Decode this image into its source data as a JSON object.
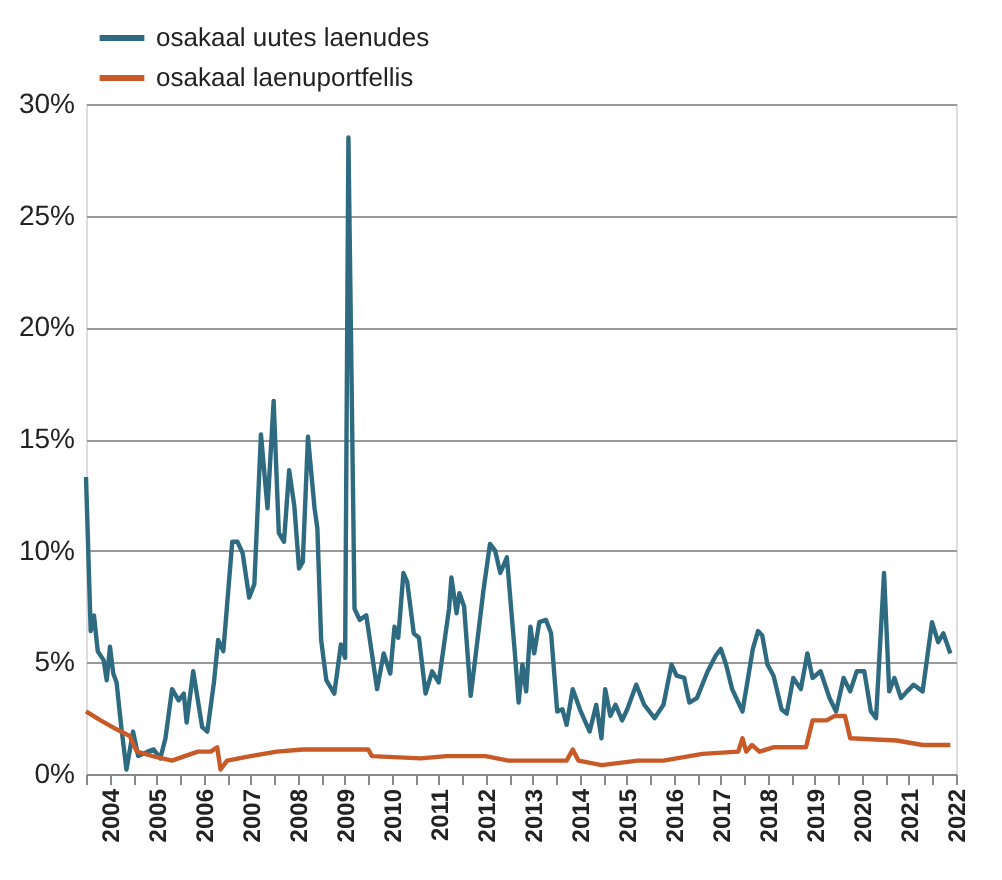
{
  "chart_data": {
    "type": "line",
    "xlim": [
      2004,
      2022.5
    ],
    "xticks": [
      {
        "value": 2004,
        "label": null
      },
      {
        "value": 2004.5,
        "label": "2004"
      },
      {
        "value": 2005,
        "label": null
      },
      {
        "value": 2005.5,
        "label": "2005"
      },
      {
        "value": 2006,
        "label": null
      },
      {
        "value": 2006.5,
        "label": "2006"
      },
      {
        "value": 2007,
        "label": null
      },
      {
        "value": 2007.5,
        "label": "2007"
      },
      {
        "value": 2008,
        "label": null
      },
      {
        "value": 2008.5,
        "label": "2008"
      },
      {
        "value": 2009,
        "label": null
      },
      {
        "value": 2009.5,
        "label": "2009"
      },
      {
        "value": 2010,
        "label": null
      },
      {
        "value": 2010.5,
        "label": "2010"
      },
      {
        "value": 2011,
        "label": null
      },
      {
        "value": 2011.5,
        "label": "2011"
      },
      {
        "value": 2012,
        "label": null
      },
      {
        "value": 2012.5,
        "label": "2012"
      },
      {
        "value": 2013,
        "label": null
      },
      {
        "value": 2013.5,
        "label": "2013"
      },
      {
        "value": 2014,
        "label": null
      },
      {
        "value": 2014.5,
        "label": "2014"
      },
      {
        "value": 2015,
        "label": null
      },
      {
        "value": 2015.5,
        "label": "2015"
      },
      {
        "value": 2016,
        "label": null
      },
      {
        "value": 2016.5,
        "label": "2016"
      },
      {
        "value": 2017,
        "label": null
      },
      {
        "value": 2017.5,
        "label": "2017"
      },
      {
        "value": 2018,
        "label": null
      },
      {
        "value": 2018.5,
        "label": "2018"
      },
      {
        "value": 2019,
        "label": null
      },
      {
        "value": 2019.5,
        "label": "2019"
      },
      {
        "value": 2020,
        "label": null
      },
      {
        "value": 2020.5,
        "label": "2020"
      },
      {
        "value": 2021,
        "label": null
      },
      {
        "value": 2021.5,
        "label": "2021"
      },
      {
        "value": 2022,
        "label": null
      },
      {
        "value": 2022.5,
        "label": "2022"
      }
    ],
    "ylim": [
      0,
      30
    ],
    "yticks": [
      {
        "value": 0,
        "label": "0%"
      },
      {
        "value": 5,
        "label": "5%"
      },
      {
        "value": 10,
        "label": "10%"
      },
      {
        "value": 15,
        "label": "15%"
      },
      {
        "value": 20,
        "label": "20%"
      },
      {
        "value": 25,
        "label": "25%"
      },
      {
        "value": 30,
        "label": "30%"
      }
    ],
    "grid": "y",
    "legend": "top left",
    "line_style": "solid",
    "marker": "none",
    "series": [
      {
        "name": "osakaal uutes laenudes",
        "color": "#2e6b80",
        "x": [
          2004.0,
          2004.1,
          2004.17,
          2004.25,
          2004.375,
          2004.44,
          2004.51,
          2004.58,
          2004.65,
          2004.75,
          2004.86,
          2005.0,
          2005.11,
          2005.31,
          2005.44,
          2005.58,
          2005.69,
          2005.83,
          2005.97,
          2006.08,
          2006.14,
          2006.28,
          2006.47,
          2006.58,
          2006.72,
          2006.81,
          2006.92,
          2007.11,
          2007.22,
          2007.33,
          2007.47,
          2007.58,
          2007.72,
          2007.86,
          2007.99,
          2008.1,
          2008.21,
          2008.32,
          2008.43,
          2008.53,
          2008.61,
          2008.72,
          2008.86,
          2008.92,
          2009.0,
          2009.11,
          2009.28,
          2009.42,
          2009.51,
          2009.58,
          2009.71,
          2009.82,
          2009.96,
          2010.19,
          2010.33,
          2010.47,
          2010.56,
          2010.64,
          2010.75,
          2010.83,
          2010.97,
          2011.08,
          2011.22,
          2011.36,
          2011.5,
          2011.72,
          2011.77,
          2011.88,
          2011.94,
          2012.04,
          2012.18,
          2012.29,
          2012.45,
          2012.59,
          2012.7,
          2012.81,
          2012.95,
          2013.12,
          2013.2,
          2013.28,
          2013.36,
          2013.45,
          2013.53,
          2013.64,
          2013.78,
          2013.89,
          2014.02,
          2014.13,
          2014.22,
          2014.35,
          2014.52,
          2014.71,
          2014.85,
          2014.96,
          2015.04,
          2015.15,
          2015.26,
          2015.4,
          2015.51,
          2015.7,
          2015.87,
          2016.09,
          2016.28,
          2016.45,
          2016.56,
          2016.72,
          2016.83,
          2016.99,
          2017.22,
          2017.39,
          2017.5,
          2017.61,
          2017.74,
          2017.96,
          2018.18,
          2018.29,
          2018.38,
          2018.49,
          2018.62,
          2018.79,
          2018.9,
          2019.04,
          2019.2,
          2019.34,
          2019.45,
          2019.62,
          2019.81,
          2019.95,
          2020.11,
          2020.25,
          2020.39,
          2020.55,
          2020.69,
          2020.8,
          2020.97,
          2021.08,
          2021.19,
          2021.33,
          2021.46,
          2021.6,
          2021.79,
          2021.99,
          2022.12,
          2022.23,
          2022.38
        ],
        "values": [
          13.3,
          6.4,
          7.1,
          5.5,
          5.1,
          4.2,
          5.7,
          4.5,
          4.1,
          2.1,
          0.2,
          1.9,
          0.8,
          1.0,
          1.1,
          0.7,
          1.6,
          3.8,
          3.3,
          3.6,
          2.3,
          4.6,
          2.1,
          1.9,
          4.1,
          6.0,
          5.5,
          10.4,
          10.4,
          9.9,
          7.9,
          8.5,
          15.2,
          11.9,
          16.7,
          10.8,
          10.4,
          13.6,
          12.0,
          9.2,
          9.5,
          15.1,
          11.9,
          11.0,
          6.0,
          4.2,
          3.6,
          5.8,
          5.2,
          28.5,
          7.4,
          6.9,
          7.1,
          3.8,
          5.4,
          4.5,
          6.6,
          6.1,
          9.0,
          8.6,
          6.3,
          6.1,
          3.6,
          4.6,
          4.1,
          7.4,
          8.8,
          7.2,
          8.1,
          7.5,
          3.5,
          5.4,
          8.2,
          10.3,
          10.0,
          9.0,
          9.7,
          5.4,
          3.2,
          4.9,
          3.7,
          6.6,
          5.4,
          6.8,
          6.9,
          6.3,
          2.8,
          2.9,
          2.2,
          3.8,
          2.8,
          1.9,
          3.1,
          1.6,
          3.8,
          2.6,
          3.1,
          2.4,
          2.9,
          4.0,
          3.1,
          2.5,
          3.1,
          4.9,
          4.4,
          4.3,
          3.2,
          3.4,
          4.6,
          5.3,
          5.6,
          4.9,
          3.8,
          2.8,
          5.6,
          6.4,
          6.2,
          4.9,
          4.4,
          2.9,
          2.7,
          4.3,
          3.8,
          5.4,
          4.3,
          4.6,
          3.4,
          2.8,
          4.3,
          3.7,
          4.6,
          4.6,
          2.8,
          2.5,
          9.0,
          3.7,
          4.3,
          3.4,
          3.7,
          4.0,
          3.7,
          6.8,
          5.9,
          6.3,
          5.4
        ]
      },
      {
        "name": "osakaal laenuportfellis",
        "color": "#c85a28",
        "x": [
          2004.0,
          2004.31,
          2004.65,
          2004.93,
          2005.08,
          2005.42,
          2005.83,
          2006.1,
          2006.38,
          2006.65,
          2006.79,
          2006.86,
          2007.0,
          2007.5,
          2008.06,
          2008.61,
          2008.94,
          2010.0,
          2010.08,
          2011.11,
          2011.67,
          2012.5,
          2012.98,
          2014.22,
          2014.35,
          2014.47,
          2014.97,
          2015.73,
          2016.28,
          2017.11,
          2017.87,
          2017.96,
          2018.04,
          2018.16,
          2018.32,
          2018.63,
          2019.31,
          2019.45,
          2019.75,
          2019.92,
          2020.14,
          2020.25,
          2021.24,
          2021.79,
          2022.38
        ],
        "values": [
          2.8,
          2.4,
          2.0,
          1.7,
          1.0,
          0.8,
          0.6,
          0.8,
          1.0,
          1.0,
          1.2,
          0.2,
          0.6,
          0.8,
          1.0,
          1.1,
          1.1,
          1.1,
          0.8,
          0.7,
          0.8,
          0.8,
          0.6,
          0.6,
          1.1,
          0.6,
          0.4,
          0.6,
          0.6,
          0.9,
          1.0,
          1.6,
          1.0,
          1.3,
          1.0,
          1.2,
          1.2,
          2.4,
          2.4,
          2.6,
          2.6,
          1.6,
          1.5,
          1.3,
          1.3
        ]
      }
    ]
  }
}
